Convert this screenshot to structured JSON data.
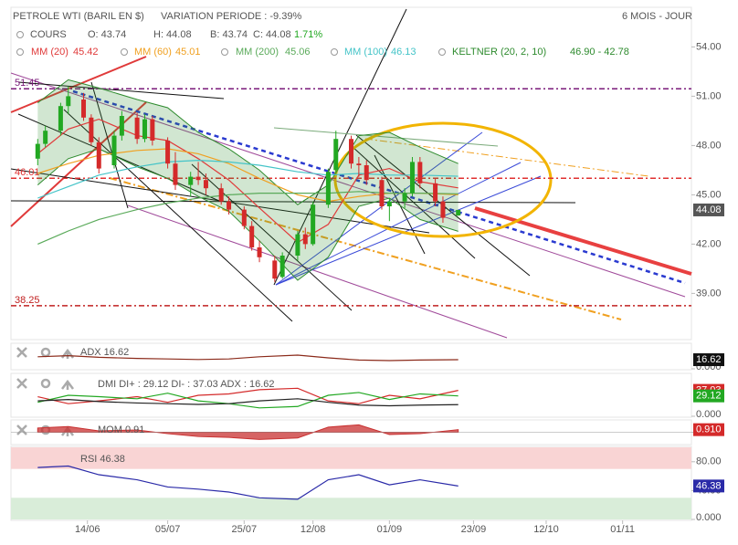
{
  "chart_data": {
    "type": "candlestick",
    "title": "PETROLE WTI (BARIL EN $)",
    "subtitle": "VARIATION PERIODE : -9.39%",
    "period": "6 MOIS - JOUR",
    "quote_label": "COURS",
    "quote": [
      "O: 43.74",
      "H: 44.08",
      "B: 43.74",
      "C: 44.08"
    ],
    "change": "1.71%",
    "xlim": [
      "25/05",
      "19/11"
    ],
    "xticks": [
      "14/06",
      "05/07",
      "25/07",
      "12/08",
      "01/09",
      "23/09",
      "12/10",
      "01/11"
    ],
    "ylim": [
      36.3,
      56.3
    ],
    "yticks": [
      {
        "value": 39,
        "label": "39.00"
      },
      {
        "value": 42,
        "label": "42.00"
      },
      {
        "value": 45,
        "label": "45.00"
      },
      {
        "value": 48,
        "label": "48.00"
      },
      {
        "value": 51,
        "label": "51.00"
      },
      {
        "value": 54,
        "label": "54.00"
      }
    ],
    "candles": {
      "up_color": "#22a822",
      "down_color": "#d42a2a",
      "x": [
        "01/06",
        "03/06",
        "07/06",
        "09/06",
        "13/06",
        "15/06",
        "17/06",
        "21/06",
        "23/06",
        "27/06",
        "29/06",
        "01/07",
        "05/07",
        "07/07",
        "11/07",
        "13/07",
        "15/07",
        "19/07",
        "21/07",
        "25/07",
        "27/07",
        "29/07",
        "02/08",
        "04/08",
        "08/08",
        "10/08",
        "12/08",
        "16/08",
        "18/08",
        "22/08",
        "24/08",
        "26/08",
        "30/08",
        "01/09",
        "05/09",
        "07/09",
        "09/09",
        "13/09",
        "15/09",
        "19/09"
      ],
      "open": [
        47.2,
        48.1,
        48.9,
        50.4,
        50.8,
        49.7,
        48.2,
        46.8,
        48.6,
        49.7,
        48.4,
        49.6,
        48.3,
        46.9,
        45.6,
        46.1,
        45.9,
        45.4,
        44.6,
        44.1,
        43.1,
        41.8,
        41.0,
        40.0,
        41.3,
        42.6,
        42.0,
        44.4,
        46.5,
        48.4,
        46.9,
        46.8,
        45.9,
        44.3,
        44.6,
        45.1,
        47.0,
        45.7,
        44.6,
        43.74
      ],
      "high": [
        48.4,
        49.2,
        50.6,
        51.6,
        51.2,
        49.9,
        48.5,
        48.9,
        50.1,
        50.0,
        49.9,
        49.8,
        48.5,
        47.6,
        46.4,
        47.0,
        46.3,
        45.7,
        44.9,
        44.3,
        43.4,
        42.2,
        41.3,
        41.5,
        42.8,
        43.0,
        44.6,
        46.6,
        48.9,
        48.6,
        47.3,
        47.1,
        46.1,
        44.8,
        45.4,
        47.3,
        47.3,
        46.0,
        44.9,
        44.08
      ],
      "low": [
        46.8,
        47.9,
        48.6,
        49.9,
        49.5,
        48.0,
        46.3,
        46.6,
        48.3,
        48.1,
        48.2,
        48.0,
        46.6,
        45.3,
        44.9,
        45.6,
        45.0,
        44.4,
        43.8,
        42.9,
        41.6,
        40.9,
        39.7,
        39.9,
        41.0,
        41.7,
        41.9,
        44.2,
        46.3,
        46.6,
        46.1,
        45.6,
        44.1,
        43.4,
        44.2,
        44.9,
        45.4,
        44.3,
        43.3,
        43.74
      ],
      "close": [
        48.1,
        48.9,
        50.4,
        51.0,
        49.7,
        48.2,
        46.6,
        48.6,
        49.8,
        48.4,
        49.6,
        48.3,
        46.9,
        45.6,
        46.1,
        45.9,
        45.4,
        44.6,
        44.1,
        43.1,
        41.8,
        41.2,
        39.9,
        41.3,
        42.6,
        42.0,
        44.4,
        46.4,
        48.4,
        46.9,
        46.8,
        45.9,
        44.3,
        44.6,
        45.1,
        47.0,
        45.7,
        44.6,
        43.6,
        44.08
      ]
    },
    "overlay_x": [
      "01/06",
      "09/06",
      "17/06",
      "27/06",
      "05/07",
      "13/07",
      "21/07",
      "29/07",
      "08/08",
      "16/08",
      "24/08",
      "01/09",
      "09/09",
      "19/09"
    ],
    "series": [
      {
        "name": "MM (20)",
        "color": "#e03a3a",
        "values": [
          47.5,
          49.0,
          49.6,
          48.6,
          48.3,
          47.2,
          45.9,
          44.2,
          42.1,
          43.2,
          46.2,
          46.6,
          45.8,
          45.42
        ]
      },
      {
        "name": "MM (60)",
        "color": "#f0a020",
        "values": [
          46.3,
          46.9,
          47.4,
          47.7,
          47.8,
          47.5,
          46.9,
          46.0,
          45.0,
          44.6,
          44.9,
          45.1,
          45.1,
          45.01
        ]
      },
      {
        "name": "MM (200)",
        "color": "#5aaa5a",
        "values": [
          42.0,
          42.8,
          43.5,
          44.1,
          44.5,
          44.8,
          45.0,
          45.1,
          45.1,
          45.1,
          45.2,
          45.1,
          45.1,
          45.06
        ]
      },
      {
        "name": "MM (100)",
        "color": "#44c4c8",
        "values": [
          44.8,
          45.5,
          46.2,
          46.7,
          47.0,
          47.1,
          47.0,
          46.8,
          46.4,
          46.2,
          46.3,
          46.2,
          46.2,
          46.13
        ]
      }
    ],
    "keltner": {
      "name": "KELTNER (20, 2, 10)",
      "readout": "46.90 - 42.78",
      "color": "#2e8b2e",
      "upper": [
        50.6,
        52.0,
        51.5,
        50.8,
        50.3,
        48.8,
        47.8,
        46.5,
        44.4,
        45.6,
        48.6,
        48.8,
        47.9,
        46.9
      ],
      "lower": [
        45.6,
        47.2,
        47.8,
        46.7,
        46.0,
        44.9,
        44.0,
        42.2,
        39.8,
        41.2,
        44.3,
        44.8,
        43.5,
        42.78
      ]
    },
    "levels": [
      {
        "value": 51.45,
        "color": "#7a1a7a"
      },
      {
        "value": 46.01,
        "color": "#e03030"
      },
      {
        "value": 38.25,
        "color": "#c02020"
      }
    ],
    "indicators": [
      {
        "type": "line",
        "label": "ADX 16.62",
        "ylim": [
          0,
          45
        ],
        "yticks": [
          {
            "value": 0,
            "label": "0.000"
          }
        ],
        "series": [
          {
            "color": "#8b2a1a",
            "tag_color": "#111111",
            "values": [
              22,
              24,
              21,
              19,
              18,
              17,
              18,
              22,
              25,
              20,
              16,
              15,
              16,
              16.62
            ]
          }
        ]
      },
      {
        "type": "line",
        "label": "DMI DI+ : 29.12 DI- : 37.03 ADX : 16.62",
        "ylim": [
          0,
          60
        ],
        "yticks": [
          {
            "value": 0,
            "label": "0.000"
          }
        ],
        "series": [
          {
            "color": "#d42a2a",
            "tag_color": "#d42a2a",
            "values": [
              28,
              18,
              22,
              28,
              20,
              30,
              32,
              38,
              40,
              22,
              18,
              30,
              25,
              37.03
            ]
          },
          {
            "color": "#22a822",
            "tag_color": "#22a822",
            "values": [
              20,
              30,
              28,
              25,
              33,
              22,
              18,
              12,
              14,
              30,
              34,
              24,
              32,
              29.12
            ]
          },
          {
            "color": "#222222",
            "values": [
              22,
              24,
              21,
              19,
              18,
              17,
              18,
              22,
              25,
              20,
              16,
              15,
              16,
              16.62
            ]
          }
        ]
      },
      {
        "type": "area",
        "label": "MOM 0.91",
        "ylim": [
          -4,
          4
        ],
        "yticks": [
          {
            "value": 0,
            "label": "0.000"
          }
        ],
        "series": [
          {
            "color": "#c83030",
            "tag_color": "#d42a2a",
            "tag_label": "0.910",
            "values": [
              1.5,
              2.0,
              0.5,
              0.8,
              -0.5,
              -1.5,
              -1.8,
              -2.5,
              -2.0,
              1.8,
              2.6,
              -0.8,
              -0.5,
              0.91
            ]
          }
        ]
      },
      {
        "type": "line",
        "label": "RSI 46.38",
        "ylim": [
          0,
          100
        ],
        "yticks": [
          {
            "value": 0,
            "label": "0.000"
          },
          {
            "value": 40,
            "label": "40.00"
          },
          {
            "value": 80,
            "label": "80.00"
          }
        ],
        "bands": [
          {
            "from": 70,
            "to": 100,
            "color": "#f9d4d4"
          },
          {
            "from": 0,
            "to": 30,
            "color": "#d9edd9"
          }
        ],
        "series": [
          {
            "color": "#2a2aa8",
            "tag_color": "#2a2aa8",
            "values": [
              72,
              74,
              62,
              55,
              45,
              42,
              38,
              30,
              28,
              55,
              62,
              48,
              55,
              46.38
            ]
          }
        ]
      }
    ]
  }
}
